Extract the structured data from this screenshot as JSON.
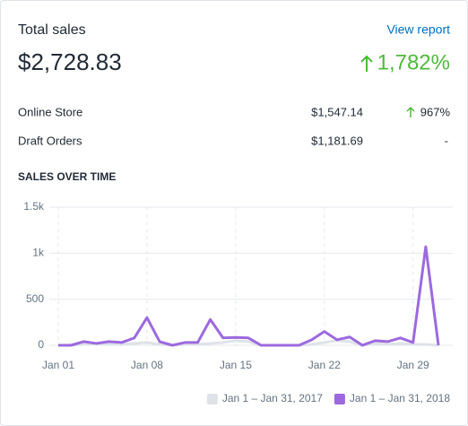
{
  "header": {
    "title": "Total sales",
    "link": "View report"
  },
  "total": {
    "value": "$2,728.83",
    "change": "1,782%"
  },
  "breakdown": {
    "rows": [
      [
        "Online Store",
        "$1,547.14",
        "967%"
      ],
      [
        "Draft Orders",
        "$1,181.69",
        "-"
      ]
    ]
  },
  "chart_data": {
    "type": "line",
    "title": "SALES OVER TIME",
    "categories": [
      "Jan 01",
      null,
      null,
      null,
      null,
      null,
      null,
      "Jan 08",
      null,
      null,
      null,
      null,
      null,
      null,
      "Jan 15",
      null,
      null,
      null,
      null,
      null,
      null,
      "Jan 22",
      null,
      null,
      null,
      null,
      null,
      null,
      "Jan 29",
      null,
      null
    ],
    "series": [
      {
        "name": "Jan 1 – Jan 31, 2017",
        "color": "#dfe3e8",
        "values": [
          0,
          0,
          10,
          20,
          10,
          10,
          20,
          30,
          10,
          0,
          10,
          10,
          20,
          30,
          50,
          40,
          0,
          0,
          0,
          0,
          10,
          30,
          50,
          40,
          0,
          20,
          10,
          20,
          10,
          10,
          0
        ]
      },
      {
        "name": "Jan 1 – Jan 31, 2018",
        "color": "#9c6ade",
        "values": [
          0,
          0,
          40,
          20,
          40,
          30,
          80,
          300,
          40,
          0,
          30,
          30,
          280,
          80,
          85,
          80,
          0,
          0,
          0,
          0,
          60,
          150,
          60,
          90,
          0,
          50,
          40,
          80,
          30,
          1070,
          0
        ]
      }
    ],
    "ylim": [
      0,
      1500
    ],
    "yticks": [
      0,
      500,
      {
        "value": 1000,
        "label": "1k"
      },
      {
        "value": 1500,
        "label": "1.5k"
      }
    ],
    "grid": true
  }
}
